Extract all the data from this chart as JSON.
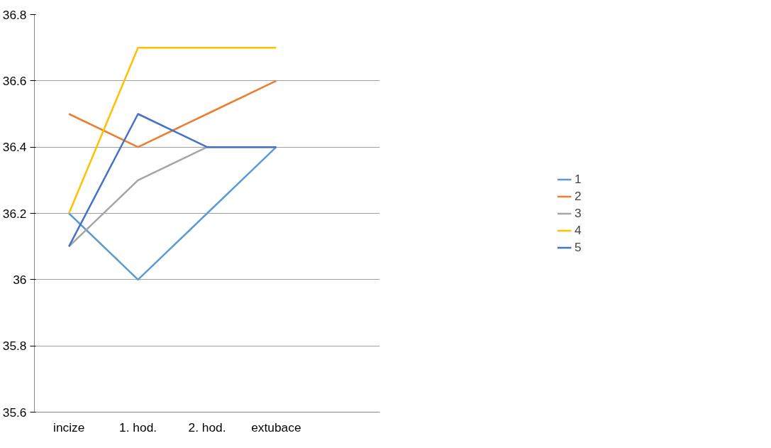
{
  "chart_data": {
    "type": "line",
    "categories": [
      "incize",
      "1. hod.",
      "2. hod.",
      "extubace",
      null
    ],
    "series": [
      {
        "name": "1",
        "color": "#5b9bd5",
        "values": [
          36.2,
          36.0,
          36.2,
          36.4,
          null
        ]
      },
      {
        "name": "2",
        "color": "#ed7d31",
        "values": [
          36.5,
          36.4,
          36.5,
          36.6,
          null
        ]
      },
      {
        "name": "3",
        "color": "#a5a5a5",
        "values": [
          36.1,
          36.3,
          36.4,
          36.4,
          null
        ]
      },
      {
        "name": "4",
        "color": "#ffc000",
        "values": [
          36.2,
          36.7,
          36.7,
          36.7,
          null
        ]
      },
      {
        "name": "5",
        "color": "#4472c4",
        "values": [
          36.1,
          36.5,
          36.4,
          36.4,
          null
        ]
      }
    ],
    "ylim": [
      35.6,
      36.8
    ],
    "yticks": [
      35.6,
      35.8,
      36,
      36.2,
      36.4,
      36.6,
      36.8
    ],
    "grid": "y",
    "legend": "right"
  }
}
